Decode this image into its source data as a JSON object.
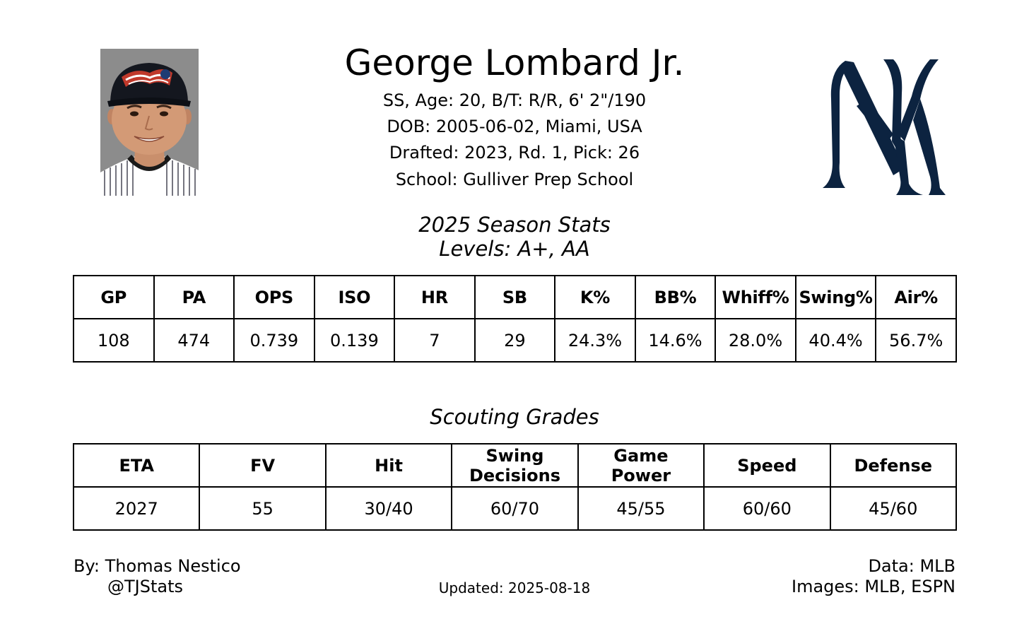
{
  "player": {
    "name": "George Lombard Jr.",
    "bio_line": "SS, Age: 20, B/T: R/R, 6' 2\"/190",
    "dob_line": "DOB: 2005-06-02, Miami, USA",
    "draft_line": "Drafted: 2023, Rd. 1, Pick: 26",
    "school_line": "School: Gulliver Prep School"
  },
  "images": {
    "headshot": "player-headshot",
    "team_logo": "ny-yankees-logo",
    "logo_color": "#0c2340"
  },
  "season": {
    "title": "2025 Season Stats",
    "levels": "Levels: A+, AA",
    "headers": [
      "GP",
      "PA",
      "OPS",
      "ISO",
      "HR",
      "SB",
      "K%",
      "BB%",
      "Whiff%",
      "Swing%",
      "Air%"
    ],
    "values": [
      "108",
      "474",
      "0.739",
      "0.139",
      "7",
      "29",
      "24.3%",
      "14.6%",
      "28.0%",
      "40.4%",
      "56.7%"
    ]
  },
  "grades": {
    "title": "Scouting Grades",
    "headers": [
      [
        "ETA"
      ],
      [
        "FV"
      ],
      [
        "Hit"
      ],
      [
        "Swing",
        "Decisions"
      ],
      [
        "Game",
        "Power"
      ],
      [
        "Speed"
      ],
      [
        "Defense"
      ]
    ],
    "values": [
      "2027",
      "55",
      "30/40",
      "60/70",
      "45/55",
      "60/60",
      "45/60"
    ]
  },
  "footer": {
    "author": "By: Thomas Nestico",
    "handle": "@TJStats",
    "updated": "Updated: 2025-08-18",
    "data_source": "Data: MLB",
    "image_source": "Images: MLB, ESPN"
  }
}
